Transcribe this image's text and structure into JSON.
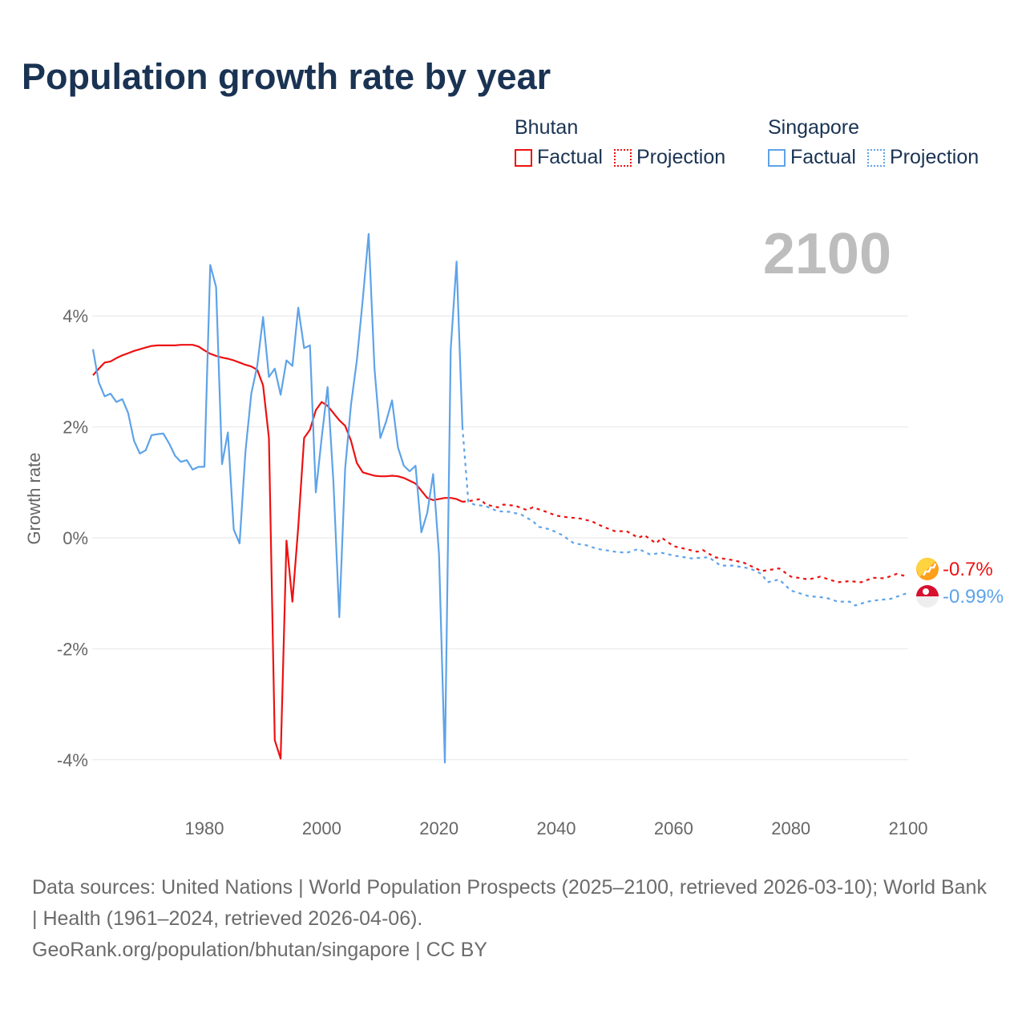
{
  "title": "Population growth rate by year",
  "current_year": "2100",
  "legend": [
    {
      "country": "Bhutan",
      "factual": "Factual",
      "projection": "Projection",
      "color": "#ee1111"
    },
    {
      "country": "Singapore",
      "factual": "Factual",
      "projection": "Projection",
      "color": "#5ea3e8"
    }
  ],
  "end_labels": {
    "bhutan": "-0.7%",
    "singapore": "-0.99%"
  },
  "footer": {
    "sources": "Data sources: United Nations | World Population Prospects (2025–2100, retrieved 2026-03-10); World Bank | Health (1961–2024, retrieved 2026-04-06).",
    "credit": "GeoRank.org/population/bhutan/singapore | CC BY"
  },
  "chart_data": {
    "type": "line",
    "title": "Population growth rate by year",
    "ylabel": "Growth rate",
    "xlabel": "",
    "xlim": [
      1961,
      2100
    ],
    "ylim": [
      -4,
      4
    ],
    "x_ticks": [
      "1980",
      "2000",
      "2020",
      "2040",
      "2060",
      "2080",
      "2100"
    ],
    "y_ticks": [
      {
        "v": 4,
        "label": "4%"
      },
      {
        "v": 2,
        "label": "2%"
      },
      {
        "v": 0,
        "label": "0%"
      },
      {
        "v": -2,
        "label": "-2%"
      },
      {
        "v": -4,
        "label": "-4%"
      }
    ],
    "grid": true,
    "legend_position": "top-right",
    "series": [
      {
        "name": "Bhutan",
        "kind": "factual",
        "start_year": 1961,
        "values": [
          2.93,
          3.05,
          3.16,
          3.18,
          3.24,
          3.29,
          3.33,
          3.37,
          3.4,
          3.43,
          3.46,
          3.47,
          3.47,
          3.47,
          3.47,
          3.48,
          3.48,
          3.48,
          3.45,
          3.38,
          3.32,
          3.28,
          3.25,
          3.23,
          3.2,
          3.16,
          3.12,
          3.09,
          3.03,
          2.75,
          1.8,
          -3.65,
          -3.98,
          -0.05,
          -1.15,
          0.2,
          1.8,
          1.95,
          2.3,
          2.45,
          2.38,
          2.25,
          2.12,
          2.02,
          1.75,
          1.35,
          1.18,
          1.15,
          1.12,
          1.11,
          1.11,
          1.12,
          1.11,
          1.08,
          1.03,
          0.98,
          0.85,
          0.72,
          0.68,
          0.7,
          0.72,
          0.72,
          0.7,
          0.65
        ]
      },
      {
        "name": "Bhutan",
        "kind": "projection",
        "points": [
          [
            2024,
            0.65
          ],
          [
            2025,
            0.66
          ],
          [
            2027,
            0.7
          ],
          [
            2028,
            0.6
          ],
          [
            2030,
            0.55
          ],
          [
            2031,
            0.6
          ],
          [
            2033,
            0.58
          ],
          [
            2035,
            0.5
          ],
          [
            2036,
            0.55
          ],
          [
            2038,
            0.48
          ],
          [
            2040,
            0.4
          ],
          [
            2042,
            0.37
          ],
          [
            2044,
            0.35
          ],
          [
            2046,
            0.3
          ],
          [
            2048,
            0.2
          ],
          [
            2050,
            0.12
          ],
          [
            2052,
            0.12
          ],
          [
            2054,
            0.0
          ],
          [
            2055,
            0.05
          ],
          [
            2057,
            -0.1
          ],
          [
            2058,
            0.0
          ],
          [
            2060,
            -0.15
          ],
          [
            2062,
            -0.2
          ],
          [
            2064,
            -0.25
          ],
          [
            2065,
            -0.22
          ],
          [
            2067,
            -0.35
          ],
          [
            2070,
            -0.4
          ],
          [
            2072,
            -0.45
          ],
          [
            2075,
            -0.6
          ],
          [
            2078,
            -0.55
          ],
          [
            2080,
            -0.7
          ],
          [
            2083,
            -0.75
          ],
          [
            2085,
            -0.7
          ],
          [
            2088,
            -0.8
          ],
          [
            2090,
            -0.78
          ],
          [
            2092,
            -0.8
          ],
          [
            2094,
            -0.72
          ],
          [
            2096,
            -0.73
          ],
          [
            2098,
            -0.65
          ],
          [
            2100,
            -0.7
          ]
        ]
      },
      {
        "name": "Singapore",
        "kind": "factual",
        "start_year": 1961,
        "values": [
          3.4,
          2.8,
          2.55,
          2.6,
          2.45,
          2.5,
          2.25,
          1.75,
          1.52,
          1.58,
          1.85,
          1.87,
          1.88,
          1.7,
          1.48,
          1.37,
          1.4,
          1.23,
          1.28,
          1.28,
          4.92,
          4.52,
          1.33,
          1.9,
          0.15,
          -0.1,
          1.55,
          2.6,
          3.1,
          3.98,
          2.9,
          3.05,
          2.58,
          3.2,
          3.1,
          4.15,
          3.42,
          3.47,
          0.82,
          1.8,
          2.72,
          1.0,
          -1.43,
          1.25,
          2.4,
          3.2,
          4.3,
          5.48,
          3.05,
          1.8,
          2.1,
          2.48,
          1.63,
          1.3,
          1.2,
          1.3,
          0.1,
          0.45,
          1.15,
          -0.3,
          -4.05,
          3.4,
          4.98,
          2.0
        ]
      },
      {
        "name": "Singapore",
        "kind": "projection",
        "points": [
          [
            2024,
            2.0
          ],
          [
            2025,
            0.65
          ],
          [
            2026,
            0.6
          ],
          [
            2028,
            0.57
          ],
          [
            2030,
            0.48
          ],
          [
            2032,
            0.47
          ],
          [
            2034,
            0.42
          ],
          [
            2036,
            0.3
          ],
          [
            2037,
            0.2
          ],
          [
            2039,
            0.15
          ],
          [
            2041,
            0.05
          ],
          [
            2043,
            -0.1
          ],
          [
            2045,
            -0.13
          ],
          [
            2047,
            -0.2
          ],
          [
            2050,
            -0.25
          ],
          [
            2052,
            -0.27
          ],
          [
            2054,
            -0.2
          ],
          [
            2056,
            -0.3
          ],
          [
            2058,
            -0.27
          ],
          [
            2060,
            -0.32
          ],
          [
            2063,
            -0.37
          ],
          [
            2066,
            -0.35
          ],
          [
            2068,
            -0.5
          ],
          [
            2070,
            -0.5
          ],
          [
            2073,
            -0.55
          ],
          [
            2075,
            -0.65
          ],
          [
            2076,
            -0.8
          ],
          [
            2078,
            -0.75
          ],
          [
            2080,
            -0.95
          ],
          [
            2083,
            -1.05
          ],
          [
            2086,
            -1.08
          ],
          [
            2088,
            -1.15
          ],
          [
            2090,
            -1.15
          ],
          [
            2091,
            -1.22
          ],
          [
            2093,
            -1.15
          ],
          [
            2095,
            -1.12
          ],
          [
            2097,
            -1.1
          ],
          [
            2100,
            -0.99
          ]
        ]
      }
    ]
  }
}
